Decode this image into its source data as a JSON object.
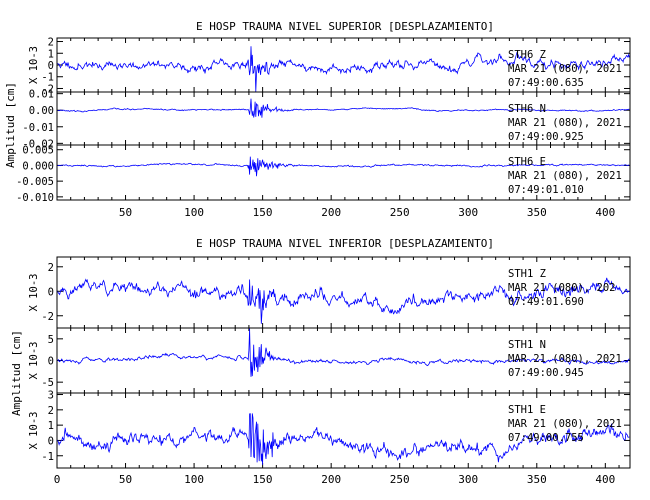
{
  "figure": {
    "background": "#ffffff",
    "trace_color": "#0000ff",
    "axis_color": "#000000"
  },
  "chart_data": [
    {
      "type": "line",
      "title": "E HOSP TRAUMA NIVEL SUPERIOR [DESPLAZAMIENTO]",
      "ylabel": "Amplitud [cm]",
      "xlim": [
        0,
        418
      ],
      "xticks": [
        "50",
        "100",
        "150",
        "200",
        "250",
        "300",
        "350",
        "400"
      ],
      "xtick_values": [
        50,
        100,
        150,
        200,
        250,
        300,
        350,
        400
      ],
      "panels": [
        {
          "station": "STH6",
          "component": "Z",
          "date": "MAR 21 (080), 2021",
          "time": "07:49:00.635",
          "scale_label": "X 10-3",
          "ylim": [
            -2.3,
            2.3
          ],
          "yticks": [
            "2",
            "1",
            "0",
            "-1",
            "-2"
          ],
          "ytick_values": [
            2,
            1,
            0,
            -1,
            -2
          ],
          "event_time": 140.5,
          "peak": 2.0,
          "noise": 0.55,
          "decay": 9,
          "seed": 11
        },
        {
          "station": "STH6",
          "component": "N",
          "date": "MAR 21 (080), 2021",
          "time": "07:49:00.925",
          "scale_label": "",
          "ylim": [
            -0.021,
            0.011
          ],
          "yticks": [
            "0.01",
            "0.00",
            "-0.01",
            "-0.02"
          ],
          "ytick_values": [
            0.01,
            0.0,
            -0.01,
            -0.02
          ],
          "event_time": 140.5,
          "peak": 0.009,
          "noise": 0.0006,
          "decay": 10,
          "seed": 23
        },
        {
          "station": "STH6",
          "component": "E",
          "date": "MAR 21 (080), 2021",
          "time": "07:49:01.010",
          "scale_label": "",
          "ylim": [
            -0.011,
            0.0065
          ],
          "yticks": [
            "0.005",
            "0.000",
            "-0.005",
            "-0.010"
          ],
          "ytick_values": [
            0.005,
            0.0,
            -0.005,
            -0.01
          ],
          "event_time": 140.5,
          "peak": 0.0055,
          "noise": 0.0004,
          "decay": 10,
          "seed": 37
        }
      ]
    },
    {
      "type": "line",
      "title": "E HOSP TRAUMA NIVEL INFERIOR [DESPLAZAMIENTO]",
      "ylabel": "Amplitud [cm]",
      "xlim": [
        0,
        418
      ],
      "xticks": [
        "0",
        "50",
        "100",
        "150",
        "200",
        "250",
        "300",
        "350",
        "400"
      ],
      "xtick_values": [
        0,
        50,
        100,
        150,
        200,
        250,
        300,
        350,
        400
      ],
      "panels": [
        {
          "station": "STH1",
          "component": "Z",
          "date": "MAR 21 (080), 202",
          "time": "07:49:01.690",
          "scale_label": "X 10-3",
          "ylim": [
            -3,
            2.8
          ],
          "yticks": [
            "2",
            "0",
            "-2"
          ],
          "ytick_values": [
            2,
            0,
            -2
          ],
          "event_time": 140.5,
          "peak": 2.7,
          "noise": 0.75,
          "decay": 9,
          "seed": 51
        },
        {
          "station": "STH1",
          "component": "N",
          "date": "MAR 21 (080), 2021",
          "time": "07:49:00.945",
          "scale_label": "X 10-3",
          "ylim": [
            -7.5,
            7.5
          ],
          "yticks": [
            "5",
            "0",
            "-5"
          ],
          "ytick_values": [
            5,
            0,
            -5
          ],
          "event_time": 140.5,
          "peak": 6.0,
          "noise": 0.7,
          "decay": 9,
          "seed": 67
        },
        {
          "station": "STH1",
          "component": "E",
          "date": "MAR 21 (080), 2021",
          "time": "07:49:00.755",
          "scale_label": "X 10-3",
          "ylim": [
            -1.8,
            3.1
          ],
          "yticks": [
            "3",
            "2",
            "1",
            "0",
            "-1"
          ],
          "ytick_values": [
            3,
            2,
            1,
            0,
            -1
          ],
          "event_time": 140.5,
          "peak": 2.9,
          "noise": 0.65,
          "decay": 9,
          "seed": 83
        }
      ]
    }
  ]
}
